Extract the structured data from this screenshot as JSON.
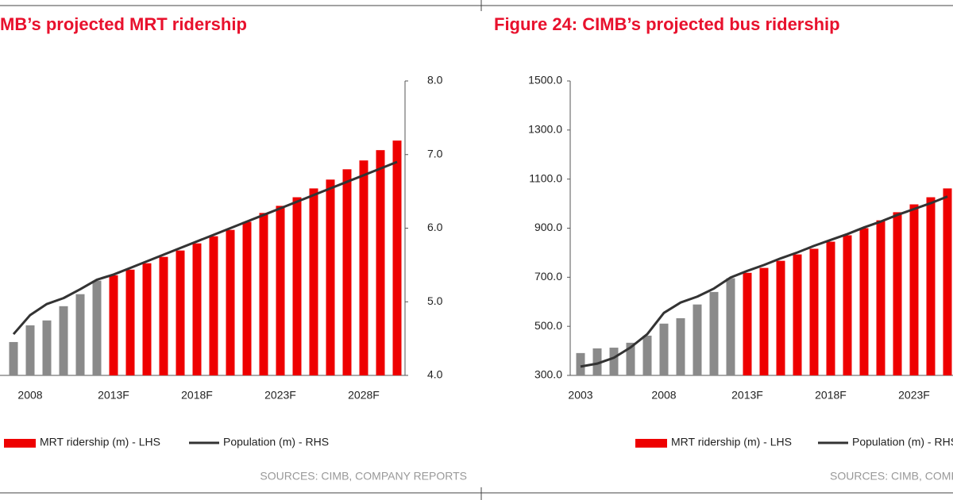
{
  "chart_data": [
    {
      "type": "bar",
      "title": "MB’s projected MRT ridership",
      "categories": [
        null,
        "2008",
        null,
        null,
        null,
        null,
        "2013F",
        null,
        null,
        null,
        null,
        "2018F",
        null,
        null,
        null,
        null,
        "2023F",
        null,
        null,
        null,
        null,
        "2028F",
        null,
        null
      ],
      "series": [
        {
          "name": "MRT ridership (m) - LHS",
          "type": "bar",
          "color": "#ee0000",
          "colors": [
            "#8a8a8a",
            "#8a8a8a",
            "#8a8a8a",
            "#8a8a8a",
            "#8a8a8a",
            "#8a8a8a",
            "#ee0000",
            "#ee0000",
            "#ee0000",
            "#ee0000",
            "#ee0000",
            "#ee0000",
            "#ee0000",
            "#ee0000",
            "#ee0000",
            "#ee0000",
            "#ee0000",
            "#ee0000",
            "#ee0000",
            "#ee0000",
            "#ee0000",
            "#ee0000",
            "#ee0000",
            "#ee0000"
          ],
          "values": [
            436,
            504,
            524,
            582,
            631,
            686,
            708,
            731,
            757,
            783,
            809,
            838,
            867,
            893,
            926,
            962,
            991,
            1026,
            1062,
            1098,
            1140,
            1176,
            1218,
            1257
          ]
        },
        {
          "name": "Population (m) - RHS",
          "type": "line",
          "axis": "y2",
          "color": "#333333",
          "values": [
            4.56,
            4.82,
            4.97,
            5.05,
            5.17,
            5.3,
            5.37,
            5.46,
            5.55,
            5.64,
            5.73,
            5.82,
            5.91,
            6.0,
            6.09,
            6.18,
            6.27,
            6.36,
            6.45,
            6.54,
            6.63,
            6.72,
            6.81,
            6.9
          ]
        }
      ],
      "ylim": [
        300,
        1500
      ],
      "y2lim": [
        4,
        8
      ],
      "y2ticks": [
        {
          "value": 4,
          "label": "4.0"
        },
        {
          "value": 5,
          "label": "5.0"
        },
        {
          "value": 6,
          "label": "6.0"
        },
        {
          "value": 7,
          "label": "7.0"
        },
        {
          "value": 8,
          "label": "8.0"
        }
      ],
      "grid": false,
      "source": "SOURCES: CIMB, COMPANY REPORTS"
    },
    {
      "type": "bar",
      "title": "Figure 24: CIMB’s projected bus ridership",
      "categories": [
        "2003",
        null,
        null,
        null,
        null,
        "2008",
        null,
        null,
        null,
        null,
        "2013F",
        null,
        null,
        null,
        null,
        "2018F",
        null,
        null,
        null,
        null,
        "2023F",
        null,
        null
      ],
      "series": [
        {
          "name": "MRT ridership (m) - LHS",
          "type": "bar",
          "color": "#ee0000",
          "colors": [
            "#8a8a8a",
            "#8a8a8a",
            "#8a8a8a",
            "#8a8a8a",
            "#8a8a8a",
            "#8a8a8a",
            "#8a8a8a",
            "#8a8a8a",
            "#8a8a8a",
            "#8a8a8a",
            "#ee0000",
            "#ee0000",
            "#ee0000",
            "#ee0000",
            "#ee0000",
            "#ee0000",
            "#ee0000",
            "#ee0000",
            "#ee0000",
            "#ee0000",
            "#ee0000",
            "#ee0000",
            "#ee0000"
          ],
          "values": [
            391,
            410,
            413,
            433,
            462,
            511,
            533,
            589,
            640,
            696,
            718,
            738,
            767,
            793,
            816,
            845,
            871,
            900,
            932,
            965,
            997,
            1026,
            1062
          ]
        },
        {
          "name": "Population (m) - RHS",
          "type": "line",
          "axis": "y2",
          "color": "#333333",
          "values": [
            4.12,
            4.16,
            4.24,
            4.38,
            4.56,
            4.85,
            4.99,
            5.07,
            5.18,
            5.33,
            5.42,
            5.5,
            5.59,
            5.67,
            5.76,
            5.84,
            5.92,
            6.01,
            6.09,
            6.18,
            6.26,
            6.34,
            6.43
          ]
        }
      ],
      "ylim": [
        300,
        1500
      ],
      "yticks": [
        {
          "value": 300,
          "label": "300.0"
        },
        {
          "value": 500,
          "label": "500.0"
        },
        {
          "value": 700,
          "label": "700.0"
        },
        {
          "value": 900,
          "label": "900.0"
        },
        {
          "value": 1100,
          "label": "1100.0"
        },
        {
          "value": 1300,
          "label": "1300.0"
        },
        {
          "value": 1500,
          "label": "1500.0"
        }
      ],
      "y2lim": [
        4,
        8
      ],
      "grid": false,
      "source": "SOURCES: CIMB, COMPANY REPORTS"
    }
  ]
}
